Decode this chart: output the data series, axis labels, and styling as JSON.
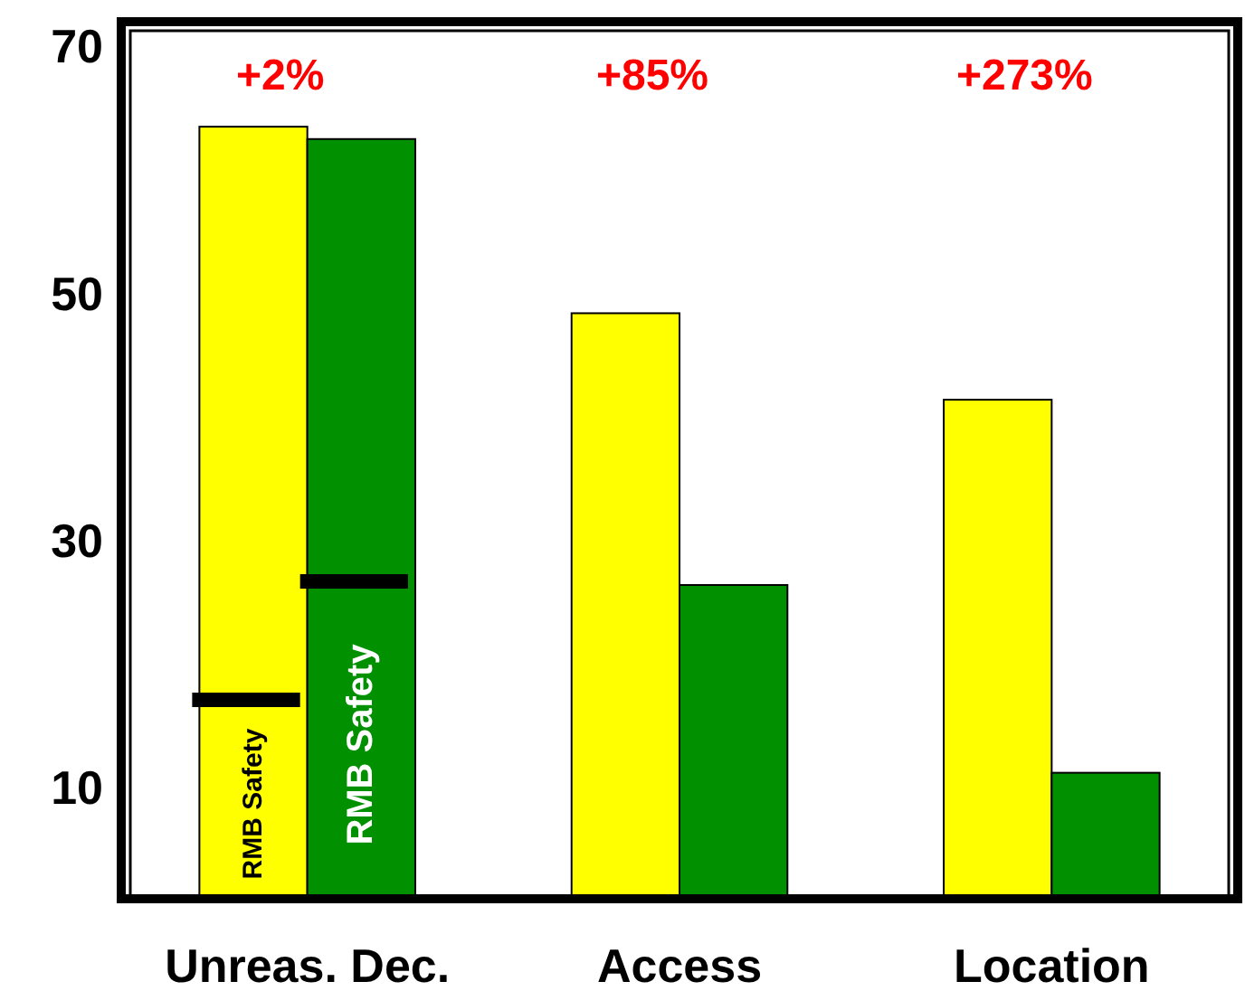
{
  "chart_data": {
    "type": "bar",
    "categories": [
      "Unreas. Dec.",
      "Access",
      "Location"
    ],
    "series": [
      {
        "color": "#ffff00",
        "values": [
          63.5,
          48.4,
          41.4
        ]
      },
      {
        "color": "#009000",
        "values": [
          62.5,
          26.4,
          11.2
        ]
      }
    ],
    "ylim": [
      1,
      72
    ],
    "yticks": [
      10,
      30,
      50,
      70
    ],
    "annotations": [
      "+2%",
      "+85%",
      "+273%"
    ],
    "ref_lines": [
      {
        "axis": "y",
        "value": 17.1,
        "label": "RMB Safety",
        "color": "#000000"
      },
      {
        "axis": "y",
        "value": 26.7,
        "label": "RMB Safety",
        "color": "#000000"
      }
    ]
  }
}
